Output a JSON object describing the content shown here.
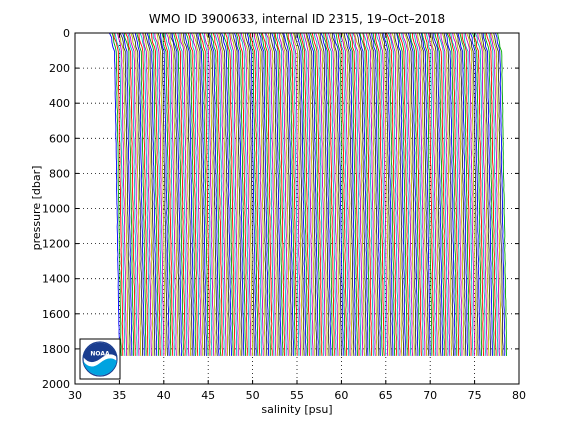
{
  "chart_data": {
    "type": "line",
    "title": "WMO ID 3900633, internal ID 2315, 19–Oct–2018",
    "xlabel": "salinity [psu]",
    "ylabel": "pressure [dbar]",
    "xlim": [
      30,
      80
    ],
    "ylim": [
      2000,
      0
    ],
    "y_reversed": true,
    "grid": true,
    "x_ticks": [
      30,
      35,
      40,
      45,
      50,
      55,
      60,
      65,
      70,
      75,
      80
    ],
    "y_ticks": [
      0,
      200,
      400,
      600,
      800,
      1000,
      1200,
      1400,
      1600,
      1800,
      2000
    ],
    "series_colors": [
      "#0000ff",
      "#00aa00",
      "#ff0000",
      "#00bfbf",
      "#bf00bf",
      "#bfbf00",
      "#333333"
    ],
    "profile_offset_psu": 0.2,
    "profile_count": 219,
    "first_profile_salinity": 34.4,
    "max_pressure": 1840,
    "logo_text": "NOAA"
  }
}
